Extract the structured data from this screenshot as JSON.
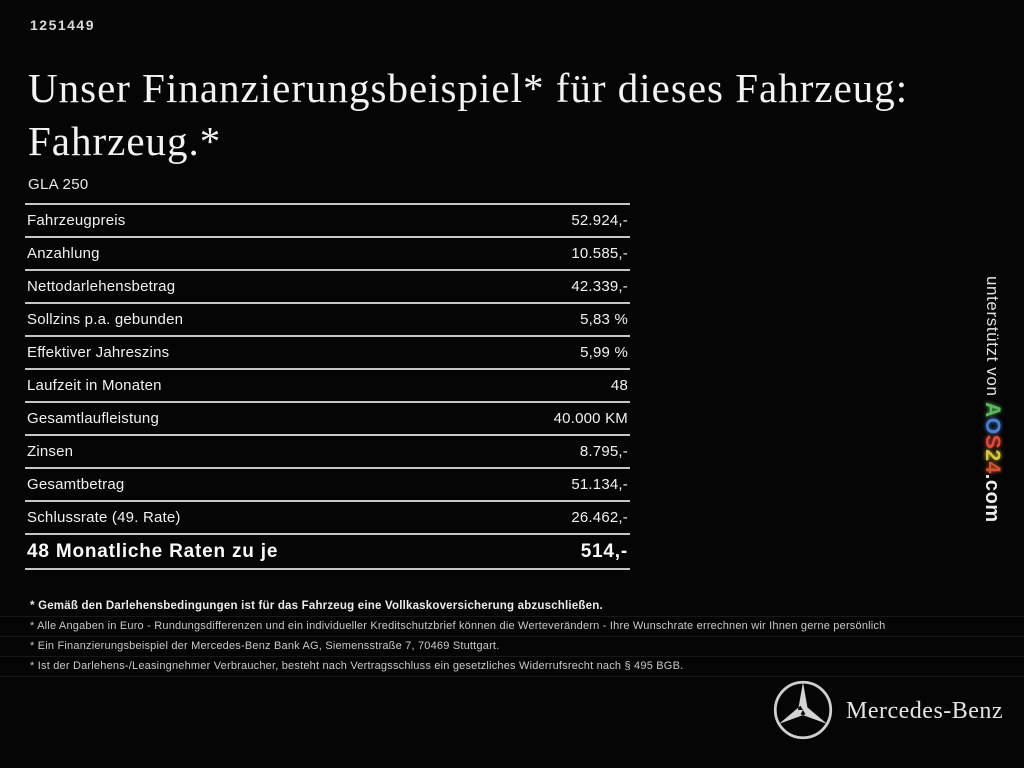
{
  "page": {
    "id_number": "1251449",
    "title_line1": "Unser Finanzierungsbeispiel* für dieses Fahrzeug:",
    "title_line2": "Fahrzeug.*",
    "model": "GLA 250"
  },
  "finance_table": {
    "rows": [
      {
        "label": "Fahrzeugpreis",
        "value": "52.924,-"
      },
      {
        "label": "Anzahlung",
        "value": "10.585,-"
      },
      {
        "label": "Nettodarlehensbetrag",
        "value": "42.339,-"
      },
      {
        "label": "Sollzins p.a. gebunden",
        "value": "5,83 %"
      },
      {
        "label": "Effektiver Jahreszins",
        "value": "5,99 %"
      },
      {
        "label": "Laufzeit in Monaten",
        "value": "48"
      },
      {
        "label": "Gesamtlaufleistung",
        "value": "40.000 KM"
      },
      {
        "label": "Zinsen",
        "value": "8.795,-"
      },
      {
        "label": "Gesamtbetrag",
        "value": "51.134,-"
      },
      {
        "label": "Schlussrate (49. Rate)",
        "value": "26.462,-"
      }
    ],
    "total_row": {
      "label": "48 Monatliche Raten zu je",
      "value": "514,-"
    }
  },
  "footnotes": [
    {
      "text": "* Gemäß den Darlehensbedingungen ist für das Fahrzeug eine Vollkaskoversicherung abzuschließen.",
      "bold": true
    },
    {
      "text": "* Alle Angaben in Euro - Rundungsdifferenzen und ein individueller Kreditschutzbrief können die Werteverändern - Ihre Wunschrate errechnen wir Ihnen gerne persönlich",
      "bold": false
    },
    {
      "text": "* Ein Finanzierungsbeispiel der Mercedes-Benz Bank AG, Siemensstraße 7, 70469 Stuttgart.",
      "bold": false
    },
    {
      "text": "* Ist der Darlehens-/Leasingnehmer Verbraucher, besteht nach Vertragsschluss ein gesetzliches Widerrufsrecht nach § 495 BGB.",
      "bold": false
    }
  ],
  "watermark": {
    "prefix": "unterstützt von ",
    "brand_letters": [
      {
        "char": "A",
        "color": "#5cb85c"
      },
      {
        "char": "O",
        "color": "#4a7fd4"
      },
      {
        "char": "S",
        "color": "#e04a3a"
      },
      {
        "char": "2",
        "color": "#d8c83e"
      },
      {
        "char": "4",
        "color": "#d2542e"
      }
    ],
    "suffix": ".com"
  },
  "footer": {
    "brand": "Mercedes-Benz",
    "logo_icon": "mercedes-star-icon"
  }
}
